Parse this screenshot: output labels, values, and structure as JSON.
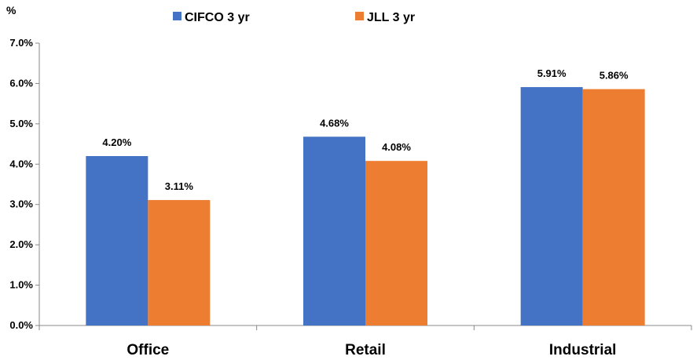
{
  "chart_data": {
    "type": "bar",
    "title": "",
    "ylabel": "%",
    "xlabel": "",
    "categories": [
      "Office",
      "Retail",
      "Industrial"
    ],
    "series": [
      {
        "name": "CIFCO 3 yr",
        "values": [
          4.2,
          4.68,
          5.91
        ],
        "labels": [
          "4.20%",
          "4.68%",
          "5.91%"
        ],
        "color": "#4472C4"
      },
      {
        "name": "JLL 3 yr",
        "values": [
          3.11,
          4.08,
          5.86
        ],
        "labels": [
          "3.11%",
          "4.08%",
          "5.86%"
        ],
        "color": "#ED7D31"
      }
    ],
    "ylim": [
      0,
      7
    ],
    "yticks": [
      0,
      1,
      2,
      3,
      4,
      5,
      6,
      7
    ],
    "ytick_labels": [
      "0.0%",
      "1.0%",
      "2.0%",
      "3.0%",
      "4.0%",
      "5.0%",
      "6.0%",
      "7.0%"
    ],
    "grid": false,
    "legend": "top"
  }
}
